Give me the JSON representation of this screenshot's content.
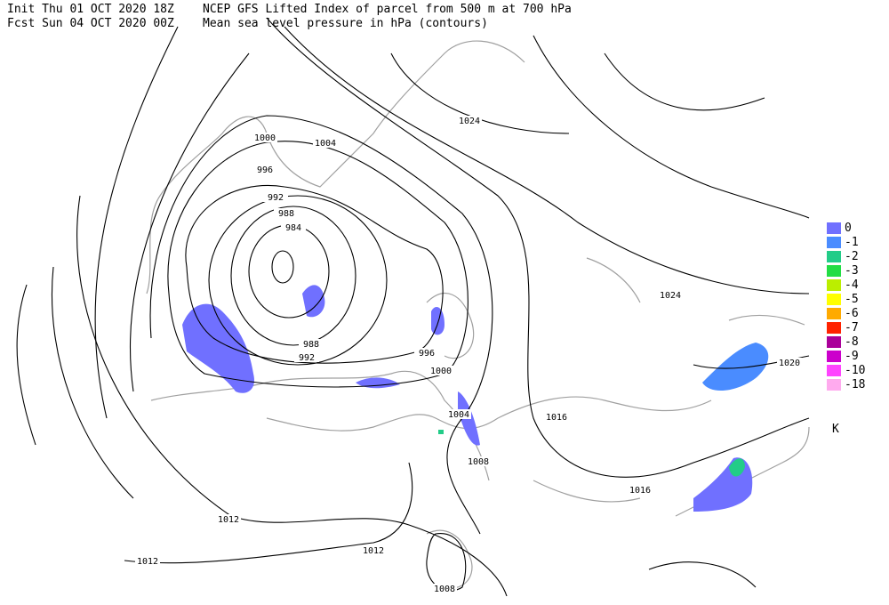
{
  "header": {
    "init": "Init  Thu 01 OCT 2020 18Z",
    "fcst": "Fcst Sun 04 OCT 2020 00Z",
    "title": "NCEP GFS Lifted Index of parcel from 500 m at 700 hPa",
    "subtitle": "Mean sea level pressure in hPa (contours)"
  },
  "contour_labels": [
    "1000",
    "1004",
    "996",
    "992",
    "988",
    "984",
    "988",
    "992",
    "996",
    "1000",
    "1004",
    "1008",
    "1016",
    "1016",
    "1020",
    "1024",
    "1024",
    "1012",
    "1012",
    "1012",
    "1008"
  ],
  "legend": {
    "unit": "K",
    "items": [
      {
        "label": "0",
        "color": "#7070ff"
      },
      {
        "label": "-1",
        "color": "#4a8cff"
      },
      {
        "label": "-2",
        "color": "#22cc88"
      },
      {
        "label": "-3",
        "color": "#22dd44"
      },
      {
        "label": "-4",
        "color": "#bbee00"
      },
      {
        "label": "-5",
        "color": "#ffff00"
      },
      {
        "label": "-6",
        "color": "#ffaa00"
      },
      {
        "label": "-7",
        "color": "#ff2200"
      },
      {
        "label": "-8",
        "color": "#aa0099"
      },
      {
        "label": "-9",
        "color": "#cc00cc"
      },
      {
        "label": "-10",
        "color": "#ff44ff"
      },
      {
        "label": "-18",
        "color": "#ffaaee"
      }
    ]
  }
}
